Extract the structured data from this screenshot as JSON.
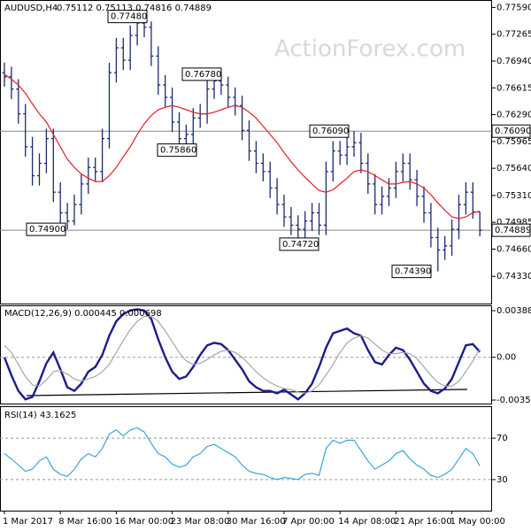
{
  "chart_data": [
    {
      "type": "ohlc",
      "title": "AUDUSD,H4",
      "subtitle": "0.75112 0.75113 0.74816 0.74889",
      "watermark": "ActionForex.com",
      "color": "#1c2b6e",
      "open": [
        0.768,
        0.7675,
        0.766,
        0.763,
        0.759,
        0.7555,
        0.757,
        0.76,
        0.7535,
        0.751,
        0.75,
        0.752,
        0.7545,
        0.7565,
        0.756,
        0.76,
        0.768,
        0.771,
        0.7695,
        0.7725,
        0.774,
        0.7735,
        0.77,
        0.7665,
        0.765,
        0.762,
        0.76,
        0.7605,
        0.7625,
        0.763,
        0.766,
        0.767,
        0.7665,
        0.765,
        0.764,
        0.761,
        0.7585,
        0.757,
        0.756,
        0.754,
        0.752,
        0.7505,
        0.7495,
        0.749,
        0.75,
        0.751,
        0.7495,
        0.756,
        0.7585,
        0.758,
        0.759,
        0.7595,
        0.757,
        0.7545,
        0.752,
        0.753,
        0.754,
        0.756,
        0.757,
        0.755,
        0.753,
        0.751,
        0.748,
        0.7465,
        0.747,
        0.749,
        0.752,
        0.7535,
        0.75112
      ],
      "high": [
        0.7692,
        0.7687,
        0.7672,
        0.7642,
        0.7602,
        0.7582,
        0.7612,
        0.7612,
        0.7547,
        0.7522,
        0.7532,
        0.7557,
        0.7577,
        0.7577,
        0.7612,
        0.7692,
        0.7722,
        0.7722,
        0.7737,
        0.7748,
        0.7745,
        0.7742,
        0.7712,
        0.7677,
        0.7662,
        0.7632,
        0.7617,
        0.7637,
        0.7642,
        0.7672,
        0.7676,
        0.7678,
        0.7675,
        0.7662,
        0.7652,
        0.7622,
        0.7597,
        0.7582,
        0.7572,
        0.7552,
        0.7532,
        0.7517,
        0.7507,
        0.7512,
        0.7522,
        0.7522,
        0.7572,
        0.7597,
        0.7597,
        0.7602,
        0.7609,
        0.7607,
        0.7582,
        0.7557,
        0.7542,
        0.7552,
        0.7572,
        0.7582,
        0.7582,
        0.7562,
        0.7542,
        0.7522,
        0.7492,
        0.7482,
        0.7502,
        0.7532,
        0.7547,
        0.7547,
        0.75113
      ],
      "low": [
        0.7663,
        0.7648,
        0.7618,
        0.7578,
        0.7543,
        0.7543,
        0.7558,
        0.7523,
        0.7498,
        0.749,
        0.7495,
        0.7508,
        0.7533,
        0.7548,
        0.7548,
        0.7588,
        0.7668,
        0.7683,
        0.7683,
        0.7713,
        0.7723,
        0.7688,
        0.7653,
        0.7638,
        0.7608,
        0.7586,
        0.759,
        0.7593,
        0.7613,
        0.7618,
        0.7648,
        0.7653,
        0.7638,
        0.7628,
        0.7598,
        0.7573,
        0.7558,
        0.7548,
        0.7528,
        0.7508,
        0.7493,
        0.7483,
        0.7472,
        0.7478,
        0.7488,
        0.7483,
        0.7483,
        0.7548,
        0.7568,
        0.7568,
        0.7578,
        0.7558,
        0.7533,
        0.7508,
        0.7508,
        0.7518,
        0.7528,
        0.7548,
        0.7538,
        0.7518,
        0.7498,
        0.7468,
        0.7439,
        0.7453,
        0.7458,
        0.7478,
        0.7508,
        0.7503,
        0.74816
      ],
      "close": [
        0.7675,
        0.766,
        0.763,
        0.759,
        0.7555,
        0.757,
        0.76,
        0.7535,
        0.751,
        0.75,
        0.752,
        0.7545,
        0.7565,
        0.756,
        0.76,
        0.768,
        0.771,
        0.7695,
        0.7725,
        0.774,
        0.7735,
        0.77,
        0.7665,
        0.765,
        0.762,
        0.76,
        0.7605,
        0.7625,
        0.763,
        0.766,
        0.767,
        0.7665,
        0.765,
        0.764,
        0.761,
        0.7585,
        0.757,
        0.756,
        0.754,
        0.752,
        0.7505,
        0.7495,
        0.749,
        0.75,
        0.751,
        0.7495,
        0.756,
        0.7585,
        0.758,
        0.759,
        0.7595,
        0.757,
        0.7545,
        0.752,
        0.753,
        0.754,
        0.756,
        0.757,
        0.755,
        0.753,
        0.751,
        0.748,
        0.7465,
        0.747,
        0.749,
        0.752,
        0.7535,
        0.75112,
        0.74889
      ],
      "ma": {
        "color": "#e0202a",
        "values": [
          0.7678,
          0.7672,
          0.7665,
          0.7655,
          0.7642,
          0.763,
          0.762,
          0.7605,
          0.759,
          0.7575,
          0.7565,
          0.7557,
          0.7552,
          0.7548,
          0.7548,
          0.7555,
          0.7565,
          0.7578,
          0.759,
          0.7605,
          0.7618,
          0.7628,
          0.7635,
          0.7638,
          0.764,
          0.7638,
          0.7635,
          0.7632,
          0.763,
          0.763,
          0.7632,
          0.7635,
          0.7638,
          0.764,
          0.7638,
          0.7632,
          0.7625,
          0.7615,
          0.7605,
          0.7595,
          0.7583,
          0.7572,
          0.7562,
          0.7553,
          0.7545,
          0.7537,
          0.7535,
          0.7538,
          0.7545,
          0.7552,
          0.756,
          0.7562,
          0.756,
          0.7555,
          0.755,
          0.7545,
          0.7545,
          0.7547,
          0.7548,
          0.7545,
          0.754,
          0.7532,
          0.7522,
          0.7513,
          0.7505,
          0.7503,
          0.7505,
          0.751,
          0.7512
        ]
      },
      "ylim": [
        0.74,
        0.7768
      ],
      "yticks": [
        {
          "value": 0.7759,
          "label": "0.77590"
        },
        {
          "value": 0.77265,
          "label": "0.77265"
        },
        {
          "value": 0.7694,
          "label": "0.76940"
        },
        {
          "value": 0.76615,
          "label": "0.76615"
        },
        {
          "value": 0.7629,
          "label": "0.76290"
        },
        {
          "value": 0.75965,
          "label": "0.75965"
        },
        {
          "value": 0.7564,
          "label": "0.75640"
        },
        {
          "value": 0.7531,
          "label": "0.75310"
        },
        {
          "value": 0.74985,
          "label": "0.74985"
        },
        {
          "value": 0.7466,
          "label": "0.74660"
        },
        {
          "value": 0.7433,
          "label": "0.74330"
        }
      ],
      "hlines": [
        {
          "value": 0.7609,
          "label": "0.76090"
        },
        {
          "value": 0.74889,
          "label": "0.74889"
        }
      ],
      "annotations": [
        {
          "value": 0.7748,
          "label": "0.77480"
        },
        {
          "value": 0.7678,
          "label": "0.76780"
        },
        {
          "value": 0.7586,
          "label": "0.75860"
        },
        {
          "value": 0.749,
          "label": "0.74900"
        },
        {
          "value": 0.7472,
          "label": "0.74720"
        },
        {
          "value": 0.7609,
          "label": "0.76090"
        },
        {
          "value": 0.7439,
          "label": "0.74390"
        }
      ]
    },
    {
      "type": "line",
      "title": "MACD(12,26,9) 0.000445 0.000698",
      "series": [
        {
          "color": "#1c1c8c",
          "values": [
            0.0,
            -0.0015,
            -0.0028,
            -0.0035,
            -0.0033,
            -0.002,
            -0.0005,
            0.0004,
            -0.001,
            -0.0025,
            -0.0028,
            -0.0022,
            -0.0012,
            -0.0008,
            0.0002,
            0.0018,
            0.003,
            0.0036,
            0.0039,
            0.004,
            0.0039,
            0.0032,
            0.0015,
            0.0,
            -0.0012,
            -0.0018,
            -0.0016,
            -0.0008,
            0.0002,
            0.001,
            0.0012,
            0.0011,
            0.0006,
            -0.0002,
            -0.001,
            -0.002,
            -0.0025,
            -0.0028,
            -0.0028,
            -0.003,
            -0.0027,
            -0.0031,
            -0.0035,
            -0.003,
            -0.0022,
            -0.0008,
            0.0008,
            0.002,
            0.0022,
            0.0024,
            0.002,
            0.0018,
            0.0006,
            -0.0004,
            -0.0006,
            0.0002,
            0.0008,
            0.0006,
            -0.0002,
            -0.0012,
            -0.0022,
            -0.0028,
            -0.003,
            -0.0026,
            -0.0018,
            -0.0004,
            0.001,
            0.0011,
            0.000445
          ]
        },
        {
          "color": "#a0a0a0",
          "values": [
            0.001,
            0.0004,
            -0.0006,
            -0.0016,
            -0.0023,
            -0.0024,
            -0.0019,
            -0.0012,
            -0.0011,
            -0.0014,
            -0.0018,
            -0.002,
            -0.0018,
            -0.0016,
            -0.0012,
            -0.0006,
            0.0004,
            0.0014,
            0.0023,
            0.003,
            0.0034,
            0.0034,
            0.003,
            0.0022,
            0.0013,
            0.0004,
            -0.0003,
            -0.0006,
            -0.0005,
            -0.0002,
            0.0002,
            0.0005,
            0.0006,
            0.0004,
            0.0,
            -0.0006,
            -0.0012,
            -0.0017,
            -0.0021,
            -0.0024,
            -0.0026,
            -0.0027,
            -0.0029,
            -0.003,
            -0.0028,
            -0.0023,
            -0.0015,
            -0.0006,
            0.0004,
            0.0012,
            0.0016,
            0.0018,
            0.0016,
            0.0011,
            0.0006,
            0.0003,
            0.0003,
            0.0004,
            0.0003,
            -0.0001,
            -0.0008,
            -0.0015,
            -0.0021,
            -0.0024,
            -0.0024,
            -0.002,
            -0.0012,
            -0.0003,
            0.000698
          ]
        }
      ],
      "ylim": [
        -0.00393,
        0.00433
      ],
      "yticks": [
        0.003888,
        {
          "value": 0,
          "label": "0.00"
        },
        -0.003564
      ],
      "levels": [
        0
      ]
    },
    {
      "type": "line",
      "title": "RSI(14) 43.1625",
      "series": [
        {
          "color": "#2a9fd6",
          "values": [
            55,
            50,
            44,
            38,
            40,
            48,
            52,
            40,
            35,
            33,
            40,
            50,
            55,
            52,
            60,
            74,
            78,
            72,
            78,
            80,
            76,
            65,
            55,
            52,
            45,
            42,
            44,
            52,
            55,
            62,
            64,
            60,
            56,
            52,
            44,
            38,
            36,
            35,
            32,
            30,
            32,
            31,
            30,
            35,
            36,
            34,
            60,
            68,
            65,
            68,
            68,
            58,
            48,
            40,
            44,
            48,
            55,
            58,
            50,
            44,
            40,
            34,
            32,
            35,
            40,
            50,
            60,
            55,
            43.1625
          ]
        }
      ],
      "ylim": [
        0,
        100
      ],
      "yticks": [
        70,
        30
      ],
      "levels": [
        70,
        30
      ],
      "xticks": [
        {
          "value": 0,
          "label": "1 Mar 2017"
        },
        {
          "value": 8,
          "label": "8 Mar 16:00"
        },
        {
          "value": 16,
          "label": "16 Mar 00:00"
        },
        {
          "value": 24,
          "label": "23 Mar 08:00"
        },
        {
          "value": 32,
          "label": "30 Mar 16:00"
        },
        {
          "value": 40,
          "label": "7 Apr 00:00"
        },
        {
          "value": 48,
          "label": "14 Apr 08:00"
        },
        {
          "value": 56,
          "label": "21 Apr 16:00"
        },
        {
          "value": 64,
          "label": "1 May 00:00"
        }
      ]
    }
  ]
}
